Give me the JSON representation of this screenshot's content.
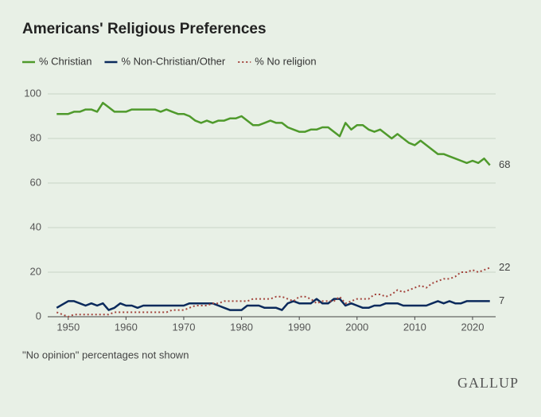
{
  "chart_data": {
    "type": "line",
    "title": "Americans' Religious Preferences",
    "note": "\"No opinion\" percentages not shown",
    "source": "GALLUP",
    "x": [
      1948,
      1950,
      1951,
      1952,
      1953,
      1954,
      1955,
      1956,
      1957,
      1958,
      1959,
      1960,
      1961,
      1962,
      1963,
      1964,
      1965,
      1966,
      1967,
      1968,
      1969,
      1970,
      1971,
      1972,
      1973,
      1974,
      1975,
      1976,
      1977,
      1978,
      1979,
      1980,
      1981,
      1982,
      1983,
      1984,
      1985,
      1986,
      1987,
      1988,
      1989,
      1990,
      1991,
      1992,
      1993,
      1994,
      1995,
      1996,
      1997,
      1998,
      1999,
      2000,
      2001,
      2002,
      2003,
      2004,
      2005,
      2006,
      2007,
      2008,
      2009,
      2010,
      2011,
      2012,
      2013,
      2014,
      2015,
      2016,
      2017,
      2018,
      2019,
      2020,
      2021,
      2022,
      2023
    ],
    "series": [
      {
        "name": "% Christian",
        "color": "#4f9a2c",
        "style": "solid",
        "values": [
          91,
          91,
          92,
          92,
          93,
          93,
          92,
          96,
          94,
          92,
          92,
          92,
          93,
          93,
          93,
          93,
          93,
          92,
          93,
          92,
          91,
          91,
          90,
          88,
          87,
          88,
          87,
          88,
          88,
          89,
          89,
          90,
          88,
          86,
          86,
          87,
          88,
          87,
          87,
          85,
          84,
          83,
          83,
          84,
          84,
          85,
          85,
          83,
          81,
          87,
          84,
          86,
          86,
          84,
          83,
          84,
          82,
          80,
          82,
          80,
          78,
          77,
          79,
          77,
          75,
          73,
          73,
          72,
          71,
          70,
          69,
          70,
          69,
          71,
          68
        ]
      },
      {
        "name": "% Non-Christian/Other",
        "color": "#0b2a5c",
        "style": "solid",
        "values": [
          4,
          7,
          7,
          6,
          5,
          6,
          5,
          6,
          3,
          4,
          6,
          5,
          5,
          4,
          5,
          5,
          5,
          5,
          5,
          5,
          5,
          5,
          6,
          6,
          6,
          6,
          6,
          5,
          4,
          3,
          3,
          3,
          5,
          5,
          5,
          4,
          4,
          4,
          3,
          6,
          7,
          6,
          6,
          6,
          8,
          6,
          6,
          8,
          8,
          5,
          6,
          5,
          4,
          4,
          5,
          5,
          6,
          6,
          6,
          5,
          5,
          5,
          5,
          5,
          6,
          7,
          6,
          7,
          6,
          6,
          7,
          7,
          7,
          7,
          7
        ]
      },
      {
        "name": "% No religion",
        "color": "#a4453d",
        "style": "dotted",
        "values": [
          2,
          0,
          1,
          1,
          1,
          1,
          1,
          1,
          1,
          2,
          2,
          2,
          2,
          2,
          2,
          2,
          2,
          2,
          2,
          3,
          3,
          3,
          4,
          5,
          5,
          5,
          6,
          6,
          7,
          7,
          7,
          7,
          7,
          8,
          8,
          8,
          8,
          9,
          9,
          8,
          7,
          9,
          9,
          8,
          6,
          7,
          7,
          7,
          9,
          6,
          7,
          8,
          8,
          8,
          10,
          10,
          9,
          10,
          12,
          11,
          12,
          13,
          14,
          13,
          15,
          16,
          17,
          17,
          18,
          20,
          20,
          21,
          20,
          21,
          22
        ]
      }
    ],
    "xlim": [
      1947,
      2024
    ],
    "ylim": [
      0,
      100
    ],
    "xticks": [
      1950,
      1960,
      1970,
      1980,
      1990,
      2000,
      2010,
      2020
    ],
    "yticks": [
      0,
      20,
      40,
      60,
      80,
      100
    ],
    "grid": true,
    "legend": "top-left"
  }
}
